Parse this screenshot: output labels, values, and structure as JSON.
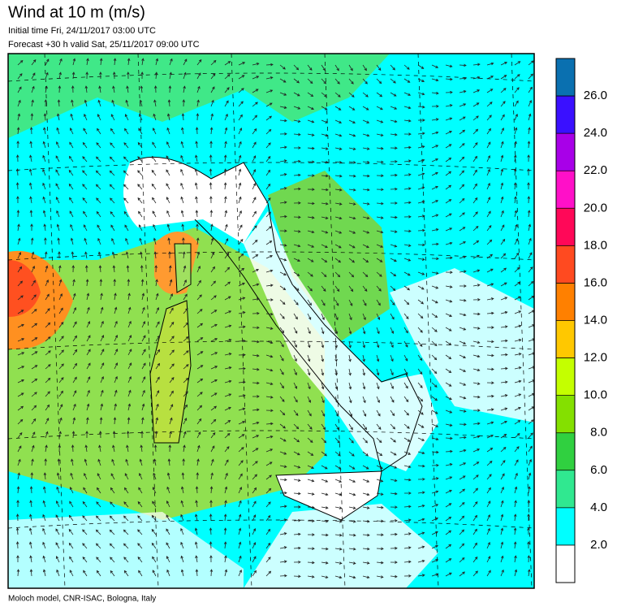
{
  "header": {
    "title": "Wind at 10 m (m/s)",
    "initial_time": "Initial time  Fri, 24/11/2017 03:00 UTC",
    "forecast": "Forecast +30 h valid  Sat, 25/11/2017 09:00 UTC"
  },
  "footer": "Moloch model, CNR-ISAC, Bologna, Italy",
  "colorbar": {
    "lim": [
      28,
      0
    ],
    "ticks": [
      {
        "value": 26,
        "label": "26.0"
      },
      {
        "value": 24,
        "label": "24.0"
      },
      {
        "value": 22,
        "label": "22.0"
      },
      {
        "value": 20,
        "label": "20.0"
      },
      {
        "value": 18,
        "label": "18.0"
      },
      {
        "value": 16,
        "label": "16.0"
      },
      {
        "value": 14,
        "label": "14.0"
      },
      {
        "value": 12,
        "label": "12.0"
      },
      {
        "value": 10,
        "label": "10.0"
      },
      {
        "value": 8,
        "label": "8.0"
      },
      {
        "value": 6,
        "label": "6.0"
      },
      {
        "value": 4,
        "label": "4.0"
      },
      {
        "value": 2,
        "label": "2.0"
      }
    ],
    "colors": [
      "#0a70b0",
      "#3a10ff",
      "#a800e8",
      "#ff10c8",
      "#ff0858",
      "#ff4a20",
      "#ff8000",
      "#ffc800",
      "#c4ff00",
      "#84e000",
      "#30d040",
      "#30e890",
      "#00ffff",
      "#ffffff"
    ]
  }
}
